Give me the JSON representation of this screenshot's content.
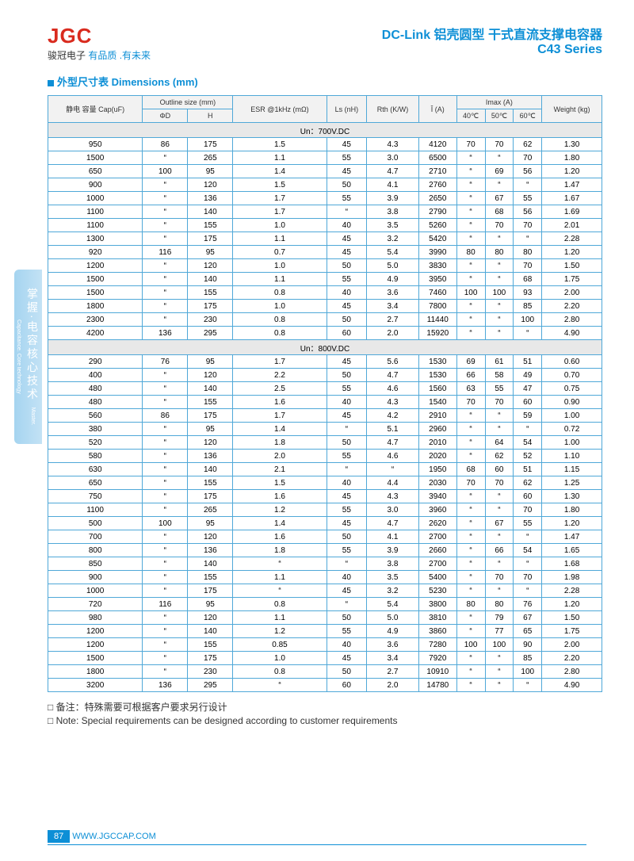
{
  "brand": {
    "logo": "JGC",
    "name": "骏冠电子",
    "slogan1": "有品质 .",
    "slogan2": "有未来"
  },
  "title": {
    "main": "DC-Link 铝壳圆型  干式直流支撑电容器",
    "series": "C43 Series"
  },
  "section_title_cn": "外型尺寸表",
  "section_title_en": "Dimensions  (mm)",
  "side": {
    "cn": "掌握·电容核心技术",
    "en": "Master. Capacitance. Core technology"
  },
  "headers": {
    "cap": "静电\n容量\nCap(uF)",
    "outline": "Outline size (mm)",
    "phiD": "ΦD",
    "H": "H",
    "esr": "ESR\n@1kHz\n(mΩ)",
    "ls": "Ls\n(nH)",
    "rth": "Rth\n(K/W)",
    "ihat": "Î\n(A)",
    "imax": "Imax (A)",
    "t40": "40℃",
    "t50": "50℃",
    "t60": "60℃",
    "weight": "Weight\n(kg)"
  },
  "sections": [
    {
      "label": "Un：700V.DC",
      "rows": [
        [
          "950",
          "86",
          "175",
          "1.5",
          "45",
          "4.3",
          "4120",
          "70",
          "70",
          "62",
          "1.30"
        ],
        [
          "1500",
          "“",
          "265",
          "1.1",
          "55",
          "3.0",
          "6500",
          "“",
          "“",
          "70",
          "1.80"
        ],
        [
          "650",
          "100",
          "95",
          "1.4",
          "45",
          "4.7",
          "2710",
          "“",
          "69",
          "56",
          "1.20"
        ],
        [
          "900",
          "“",
          "120",
          "1.5",
          "50",
          "4.1",
          "2760",
          "“",
          "“",
          "“",
          "1.47"
        ],
        [
          "1000",
          "“",
          "136",
          "1.7",
          "55",
          "3.9",
          "2650",
          "“",
          "67",
          "55",
          "1.67"
        ],
        [
          "1100",
          "“",
          "140",
          "1.7",
          "“",
          "3.8",
          "2790",
          "“",
          "68",
          "56",
          "1.69"
        ],
        [
          "1100",
          "“",
          "155",
          "1.0",
          "40",
          "3.5",
          "5260",
          "“",
          "70",
          "70",
          "2.01"
        ],
        [
          "1300",
          "“",
          "175",
          "1.1",
          "45",
          "3.2",
          "5420",
          "“",
          "“",
          "“",
          "2.28"
        ],
        [
          "920",
          "116",
          "95",
          "0.7",
          "45",
          "5.4",
          "3990",
          "80",
          "80",
          "80",
          "1.20"
        ],
        [
          "1200",
          "“",
          "120",
          "1.0",
          "50",
          "5.0",
          "3830",
          "“",
          "“",
          "70",
          "1.50"
        ],
        [
          "1500",
          "“",
          "140",
          "1.1",
          "55",
          "4.9",
          "3950",
          "“",
          "“",
          "68",
          "1.75"
        ],
        [
          "1500",
          "“",
          "155",
          "0.8",
          "40",
          "3.6",
          "7460",
          "100",
          "100",
          "93",
          "2.00"
        ],
        [
          "1800",
          "“",
          "175",
          "1.0",
          "45",
          "3.4",
          "7800",
          "“",
          "“",
          "85",
          "2.20"
        ],
        [
          "2300",
          "“",
          "230",
          "0.8",
          "50",
          "2.7",
          "11440",
          "“",
          "“",
          "100",
          "2.80"
        ],
        [
          "4200",
          "136",
          "295",
          "0.8",
          "60",
          "2.0",
          "15920",
          "“",
          "“",
          "“",
          "4.90"
        ]
      ]
    },
    {
      "label": "Un：800V.DC",
      "rows": [
        [
          "290",
          "76",
          "95",
          "1.7",
          "45",
          "5.6",
          "1530",
          "69",
          "61",
          "51",
          "0.60"
        ],
        [
          "400",
          "“",
          "120",
          "2.2",
          "50",
          "4.7",
          "1530",
          "66",
          "58",
          "49",
          "0.70"
        ],
        [
          "480",
          "“",
          "140",
          "2.5",
          "55",
          "4.6",
          "1560",
          "63",
          "55",
          "47",
          "0.75"
        ],
        [
          "480",
          "“",
          "155",
          "1.6",
          "40",
          "4.3",
          "1540",
          "70",
          "70",
          "60",
          "0.90"
        ],
        [
          "560",
          "86",
          "175",
          "1.7",
          "45",
          "4.2",
          "2910",
          "“",
          "“",
          "59",
          "1.00"
        ],
        [
          "380",
          "“",
          "95",
          "1.4",
          "“",
          "5.1",
          "2960",
          "“",
          "“",
          "“",
          "0.72"
        ],
        [
          "520",
          "“",
          "120",
          "1.8",
          "50",
          "4.7",
          "2010",
          "“",
          "64",
          "54",
          "1.00"
        ],
        [
          "580",
          "“",
          "136",
          "2.0",
          "55",
          "4.6",
          "2020",
          "“",
          "62",
          "52",
          "1.10"
        ],
        [
          "630",
          "“",
          "140",
          "2.1",
          "“",
          "“",
          "1950",
          "68",
          "60",
          "51",
          "1.15"
        ],
        [
          "650",
          "“",
          "155",
          "1.5",
          "40",
          "4.4",
          "2030",
          "70",
          "70",
          "62",
          "1.25"
        ],
        [
          "750",
          "“",
          "175",
          "1.6",
          "45",
          "4.3",
          "3940",
          "“",
          "“",
          "60",
          "1.30"
        ],
        [
          "1100",
          "“",
          "265",
          "1.2",
          "55",
          "3.0",
          "3960",
          "“",
          "“",
          "70",
          "1.80"
        ],
        [
          "500",
          "100",
          "95",
          "1.4",
          "45",
          "4.7",
          "2620",
          "“",
          "67",
          "55",
          "1.20"
        ],
        [
          "700",
          "“",
          "120",
          "1.6",
          "50",
          "4.1",
          "2700",
          "“",
          "“",
          "“",
          "1.47"
        ],
        [
          "800",
          "“",
          "136",
          "1.8",
          "55",
          "3.9",
          "2660",
          "“",
          "66",
          "54",
          "1.65"
        ],
        [
          "850",
          "“",
          "140",
          "“",
          "“",
          "3.8",
          "2700",
          "“",
          "“",
          "“",
          "1.68"
        ],
        [
          "900",
          "“",
          "155",
          "1.1",
          "40",
          "3.5",
          "5400",
          "“",
          "70",
          "70",
          "1.98"
        ],
        [
          "1000",
          "“",
          "175",
          "“",
          "45",
          "3.2",
          "5230",
          "“",
          "“",
          "“",
          "2.28"
        ],
        [
          "720",
          "116",
          "95",
          "0.8",
          "“",
          "5.4",
          "3800",
          "80",
          "80",
          "76",
          "1.20"
        ],
        [
          "980",
          "“",
          "120",
          "1.1",
          "50",
          "5.0",
          "3810",
          "“",
          "79",
          "67",
          "1.50"
        ],
        [
          "1200",
          "“",
          "140",
          "1.2",
          "55",
          "4.9",
          "3860",
          "“",
          "77",
          "65",
          "1.75"
        ],
        [
          "1200",
          "“",
          "155",
          "0.85",
          "40",
          "3.6",
          "7280",
          "100",
          "100",
          "90",
          "2.00"
        ],
        [
          "1500",
          "“",
          "175",
          "1.0",
          "45",
          "3.4",
          "7920",
          "“",
          "“",
          "85",
          "2.20"
        ],
        [
          "1800",
          "“",
          "230",
          "0.8",
          "50",
          "2.7",
          "10910",
          "“",
          "“",
          "100",
          "2.80"
        ],
        [
          "3200",
          "136",
          "295",
          "“",
          "60",
          "2.0",
          "14780",
          "“",
          "“",
          "“",
          "4.90"
        ]
      ]
    }
  ],
  "notes": {
    "cn": "备注：特殊需要可根据客户要求另行设计",
    "en": "Note: Special requirements can be designed according to customer requirements"
  },
  "footer": {
    "page": "87",
    "url": "WWW.JGCCAP.COM"
  }
}
